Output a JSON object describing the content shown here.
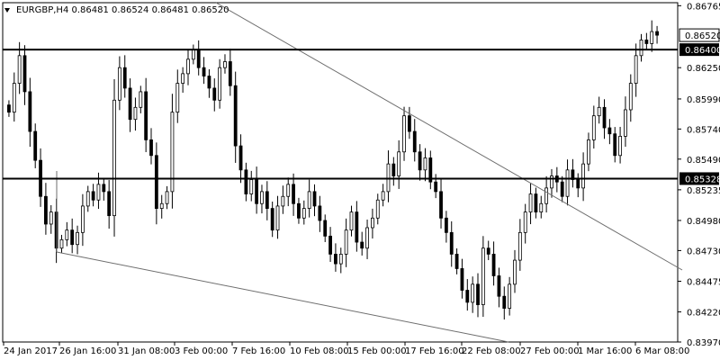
{
  "chart_data": {
    "type": "candlestick",
    "symbol": "EURGBP",
    "timeframe": "H4",
    "ohlc_header": [
      "0.86481",
      "0.86524",
      "0.86481",
      "0.86520"
    ],
    "ylim": [
      0.8397,
      0.8679
    ],
    "y_ticks": [
      "0.86765",
      "0.86250",
      "0.85990",
      "0.85740",
      "0.85490",
      "0.85235",
      "0.84980",
      "0.84730",
      "0.84475",
      "0.84220",
      "0.83970"
    ],
    "x_ticks": [
      "24 Jan 2017",
      "26 Jan 16:00",
      "31 Jan 08:00",
      "3 Feb 00:00",
      "7 Feb 16:00",
      "10 Feb 08:00",
      "15 Feb 00:00",
      "17 Feb 16:00",
      "22 Feb 08:00",
      "27 Feb 00:00",
      "1 Mar 16:00",
      "6 Mar 08:00"
    ],
    "horizontal_levels": [
      {
        "label": "0.86400",
        "value": 0.864
      },
      {
        "label": "0.85328",
        "value": 0.85328
      }
    ],
    "last_price": {
      "label": "0.86520",
      "value": 0.8652
    },
    "closes": [
      0.8588,
      0.8612,
      0.8635,
      0.8605,
      0.8572,
      0.8548,
      0.8518,
      0.8495,
      0.8505,
      0.8475,
      0.8482,
      0.849,
      0.8478,
      0.8488,
      0.851,
      0.8522,
      0.8515,
      0.8528,
      0.8522,
      0.8502,
      0.8598,
      0.8625,
      0.8608,
      0.8582,
      0.8592,
      0.8605,
      0.8565,
      0.8552,
      0.8508,
      0.8512,
      0.8522,
      0.8588,
      0.8612,
      0.862,
      0.8632,
      0.864,
      0.8625,
      0.8618,
      0.8608,
      0.8598,
      0.8625,
      0.863,
      0.861,
      0.856,
      0.854,
      0.852,
      0.8532,
      0.8512,
      0.8522,
      0.8508,
      0.849,
      0.851,
      0.8518,
      0.8528,
      0.8512,
      0.85,
      0.8508,
      0.8522,
      0.851,
      0.8498,
      0.8485,
      0.847,
      0.8462,
      0.847,
      0.849,
      0.8505,
      0.848,
      0.8475,
      0.8492,
      0.85,
      0.8515,
      0.8522,
      0.8545,
      0.8535,
      0.8555,
      0.8585,
      0.8572,
      0.8555,
      0.854,
      0.855,
      0.853,
      0.8522,
      0.85,
      0.8488,
      0.847,
      0.8458,
      0.844,
      0.843,
      0.8445,
      0.8428,
      0.8475,
      0.847,
      0.8452,
      0.8435,
      0.8425,
      0.8445,
      0.8465,
      0.8488,
      0.8505,
      0.852,
      0.8505,
      0.8512,
      0.8525,
      0.8535,
      0.853,
      0.8518,
      0.854,
      0.8532,
      0.8525,
      0.8545,
      0.8565,
      0.8585,
      0.8592,
      0.8575,
      0.857,
      0.8552,
      0.8568,
      0.859,
      0.8612,
      0.8635,
      0.8648,
      0.8645,
      0.8655,
      0.8652
    ]
  }
}
